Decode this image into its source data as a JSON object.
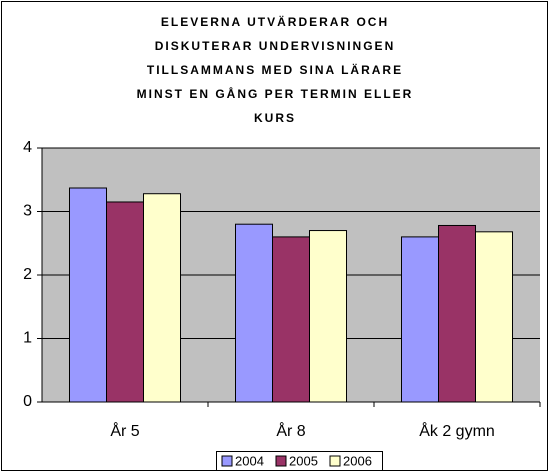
{
  "chart_data": {
    "type": "bar",
    "title": [
      "ELEVERNA UTVÄRDERAR OCH",
      "DISKUTERAR UNDERVISNINGEN",
      "TILLSAMMANS MED SINA LÄRARE",
      "MINST EN GÅNG PER TERMIN ELLER",
      "KURS"
    ],
    "categories": [
      "År 5",
      "År 8",
      "Åk 2 gymn"
    ],
    "series": [
      {
        "name": "2004",
        "color": "#9999ff",
        "values": [
          3.37,
          2.8,
          2.6
        ]
      },
      {
        "name": "2005",
        "color": "#993366",
        "values": [
          3.15,
          2.6,
          2.78
        ]
      },
      {
        "name": "2006",
        "color": "#ffffcc",
        "values": [
          3.28,
          2.7,
          2.68
        ]
      }
    ],
    "ylim": [
      0,
      4
    ],
    "yticks": [
      0,
      1,
      2,
      3,
      4
    ],
    "grid": true,
    "legend": "bottom"
  }
}
